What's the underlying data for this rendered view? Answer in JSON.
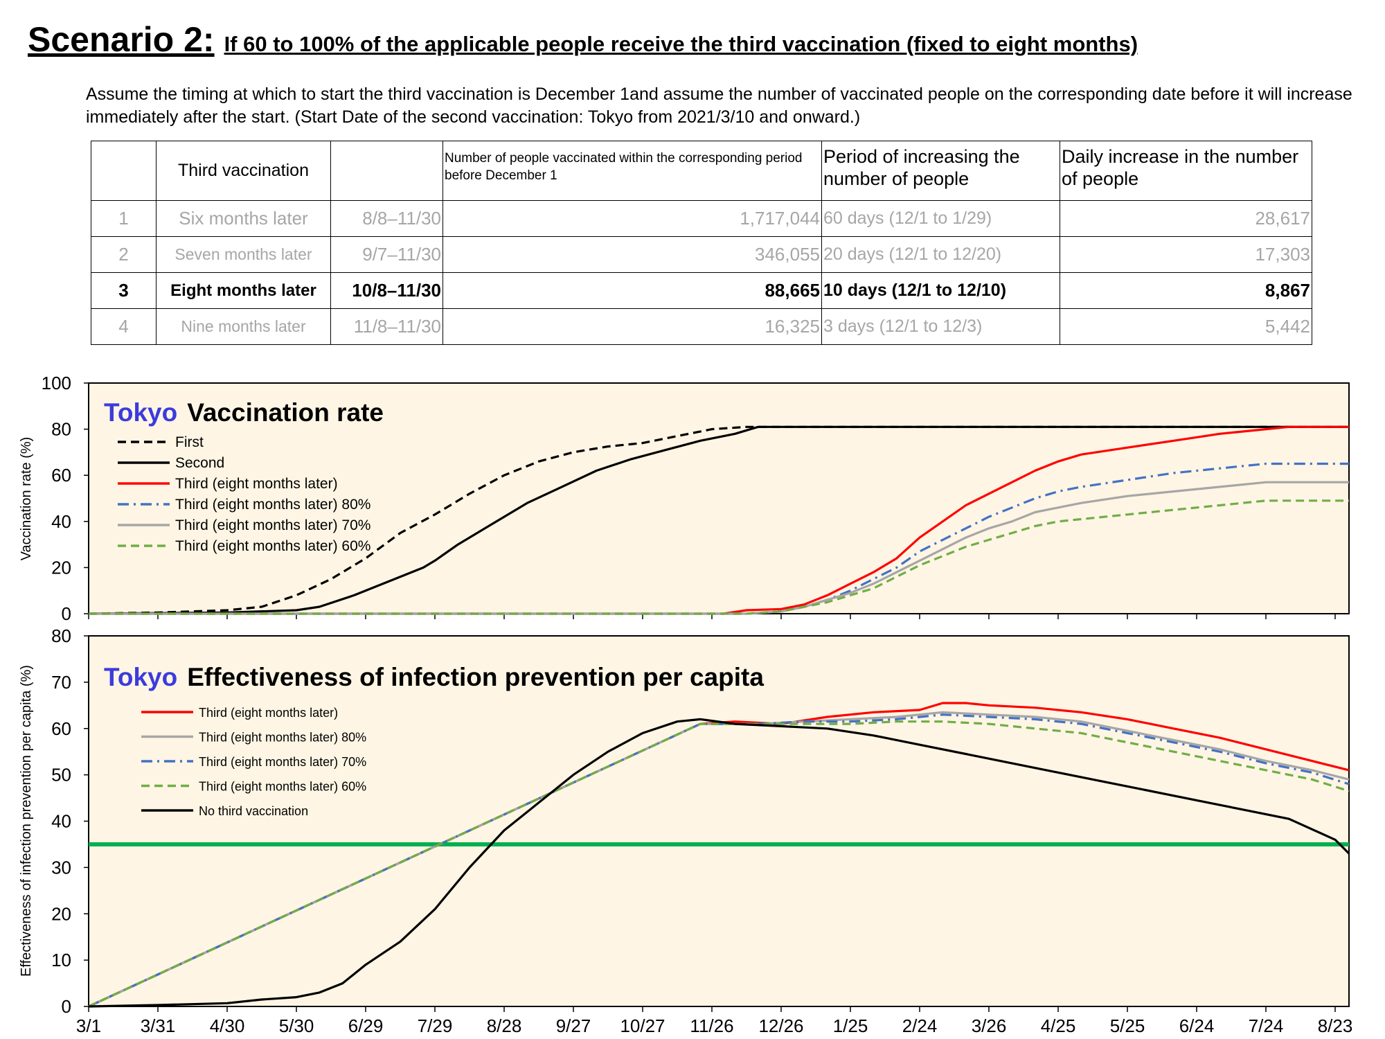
{
  "heading": {
    "scenario": "Scenario 2:",
    "description": "If 60 to 100% of the applicable people receive the third vaccination (fixed to eight months)"
  },
  "assumption": "Assume the timing at which to start the third vaccination is December 1and assume the number of vaccinated people on the corresponding date before it will increase immediately after the start. (Start Date of the second vaccination: Tokyo from 2021/3/10 and onward.)",
  "table": {
    "headers": [
      "",
      "Third vaccination",
      "",
      "Number of people vaccinated within the corresponding period before December 1",
      "Period of increasing the number of people",
      "Daily increase in the number of people"
    ],
    "rows": [
      {
        "no": "1",
        "label": "Six months later",
        "range": "8/8–11/30",
        "count": "1,717,044",
        "period": "60 days (12/1 to 1/29)",
        "daily": "28,617",
        "highlight": false
      },
      {
        "no": "2",
        "label": "Seven months later",
        "range": "9/7–11/30",
        "count": "346,055",
        "period": "20 days (12/1 to 12/20)",
        "daily": "17,303",
        "highlight": false
      },
      {
        "no": "3",
        "label": "Eight months later",
        "range": "10/8–11/30",
        "count": "88,665",
        "period": "10 days (12/1 to 12/10)",
        "daily": "8,867",
        "highlight": true
      },
      {
        "no": "4",
        "label": "Nine months later",
        "range": "11/8–11/30",
        "count": "16,325",
        "period": "3 days (12/1 to 12/3)",
        "daily": "5,442",
        "highlight": false
      }
    ]
  },
  "chart_data": [
    {
      "type": "line",
      "title_prefix": "Tokyo",
      "title": "Vaccination rate",
      "ylabel": "Vaccination rate (%)",
      "ylim": [
        0,
        100
      ],
      "yticks": [
        "0",
        "20",
        "40",
        "60",
        "80",
        "100"
      ],
      "xlabel": "",
      "x_tick_labels": [
        "3/1",
        "3/31",
        "4/30",
        "5/30",
        "6/29",
        "7/29",
        "8/28",
        "9/27",
        "10/27",
        "11/26",
        "12/26",
        "1/25",
        "2/24",
        "3/26",
        "4/25",
        "5/25",
        "6/24",
        "7/24",
        "8/23"
      ],
      "x_unit": "day index (0 = 3/1)",
      "xlim": [
        0,
        546
      ],
      "legend_position": "top-left",
      "series": [
        {
          "name": "First",
          "color": "#000000",
          "dash": "dashed",
          "points": [
            [
              0,
              0
            ],
            [
              30,
              0.5
            ],
            [
              60,
              1.5
            ],
            [
              75,
              3
            ],
            [
              90,
              8
            ],
            [
              105,
              15
            ],
            [
              120,
              24
            ],
            [
              135,
              35
            ],
            [
              150,
              43
            ],
            [
              165,
              52
            ],
            [
              180,
              60
            ],
            [
              195,
              66
            ],
            [
              210,
              70
            ],
            [
              225,
              72.5
            ],
            [
              240,
              74
            ],
            [
              255,
              77
            ],
            [
              270,
              80
            ],
            [
              285,
              81
            ],
            [
              300,
              81
            ],
            [
              546,
              81
            ]
          ]
        },
        {
          "name": "Second",
          "color": "#000000",
          "dash": "solid",
          "points": [
            [
              0,
              0
            ],
            [
              60,
              0.5
            ],
            [
              90,
              1.5
            ],
            [
              100,
              3
            ],
            [
              115,
              8
            ],
            [
              130,
              14
            ],
            [
              145,
              20
            ],
            [
              150,
              23
            ],
            [
              160,
              30
            ],
            [
              175,
              39
            ],
            [
              190,
              48
            ],
            [
              205,
              55
            ],
            [
              220,
              62
            ],
            [
              235,
              67
            ],
            [
              250,
              71
            ],
            [
              265,
              75
            ],
            [
              280,
              78
            ],
            [
              290,
              81
            ],
            [
              546,
              81
            ]
          ]
        },
        {
          "name": "Third (eight months later)",
          "color": "#ff0000",
          "dash": "solid",
          "points": [
            [
              0,
              0
            ],
            [
              275,
              0
            ],
            [
              285,
              1.5
            ],
            [
              300,
              2
            ],
            [
              310,
              4
            ],
            [
              320,
              8
            ],
            [
              330,
              13
            ],
            [
              340,
              18
            ],
            [
              350,
              24
            ],
            [
              360,
              33
            ],
            [
              370,
              40
            ],
            [
              380,
              47
            ],
            [
              390,
              52
            ],
            [
              400,
              57
            ],
            [
              410,
              62
            ],
            [
              420,
              66
            ],
            [
              430,
              69
            ],
            [
              450,
              72
            ],
            [
              470,
              75
            ],
            [
              490,
              78
            ],
            [
              510,
              80
            ],
            [
              520,
              81
            ],
            [
              546,
              81
            ]
          ]
        },
        {
          "name": "Third (eight months later) 80%",
          "color": "#4472c4",
          "dash": "dashdot",
          "points": [
            [
              0,
              0
            ],
            [
              285,
              0
            ],
            [
              300,
              1
            ],
            [
              310,
              3
            ],
            [
              320,
              6
            ],
            [
              330,
              10
            ],
            [
              340,
              15
            ],
            [
              350,
              20
            ],
            [
              360,
              27
            ],
            [
              370,
              32
            ],
            [
              380,
              37
            ],
            [
              390,
              42
            ],
            [
              400,
              46
            ],
            [
              410,
              50
            ],
            [
              420,
              53
            ],
            [
              430,
              55
            ],
            [
              450,
              58
            ],
            [
              470,
              61
            ],
            [
              490,
              63
            ],
            [
              510,
              65
            ],
            [
              546,
              65
            ]
          ]
        },
        {
          "name": "Third (eight months later) 70%",
          "color": "#a6a6a6",
          "dash": "solid",
          "points": [
            [
              0,
              0
            ],
            [
              285,
              0
            ],
            [
              300,
              1
            ],
            [
              310,
              3
            ],
            [
              320,
              6
            ],
            [
              330,
              9
            ],
            [
              340,
              13
            ],
            [
              350,
              18
            ],
            [
              360,
              23
            ],
            [
              370,
              28
            ],
            [
              380,
              33
            ],
            [
              390,
              37
            ],
            [
              400,
              40
            ],
            [
              410,
              44
            ],
            [
              420,
              46
            ],
            [
              430,
              48
            ],
            [
              450,
              51
            ],
            [
              470,
              53
            ],
            [
              490,
              55
            ],
            [
              510,
              57
            ],
            [
              546,
              57
            ]
          ]
        },
        {
          "name": "Third (eight months later) 60%",
          "color": "#70ad47",
          "dash": "dashed",
          "points": [
            [
              0,
              0
            ],
            [
              285,
              0
            ],
            [
              300,
              1
            ],
            [
              310,
              3
            ],
            [
              320,
              5
            ],
            [
              330,
              8
            ],
            [
              340,
              11
            ],
            [
              350,
              16
            ],
            [
              360,
              21
            ],
            [
              370,
              25
            ],
            [
              380,
              29
            ],
            [
              390,
              32
            ],
            [
              400,
              35
            ],
            [
              410,
              38
            ],
            [
              420,
              40
            ],
            [
              430,
              41
            ],
            [
              450,
              43
            ],
            [
              470,
              45
            ],
            [
              490,
              47
            ],
            [
              510,
              49
            ],
            [
              546,
              49
            ]
          ]
        }
      ]
    },
    {
      "type": "line",
      "title_prefix": "Tokyo",
      "title": "Effectiveness of infection prevention per capita",
      "ylabel": "Effectiveness of infection prevention per capita (%)",
      "ylim": [
        0,
        80
      ],
      "yticks": [
        "0",
        "10",
        "20",
        "30",
        "40",
        "50",
        "60",
        "70",
        "80"
      ],
      "xlabel": "",
      "x_tick_labels": [
        "3/1",
        "3/31",
        "4/30",
        "5/30",
        "6/29",
        "7/29",
        "8/28",
        "9/27",
        "10/27",
        "11/26",
        "12/26",
        "1/25",
        "2/24",
        "3/26",
        "4/25",
        "5/25",
        "6/24",
        "7/24",
        "8/23"
      ],
      "x_unit": "day index (0 = 3/1)",
      "xlim": [
        0,
        546
      ],
      "legend_position": "top-left",
      "reference_line": {
        "y": 35,
        "color": "#00b050"
      },
      "series": [
        {
          "name": "Third (eight months later)",
          "color": "#ff0000",
          "dash": "solid",
          "points": [
            [
              0,
              0
            ],
            [
              265,
              61
            ],
            [
              280,
              61.5
            ],
            [
              300,
              61
            ],
            [
              320,
              62.5
            ],
            [
              340,
              63.5
            ],
            [
              360,
              64
            ],
            [
              370,
              65.5
            ],
            [
              380,
              65.5
            ],
            [
              390,
              65
            ],
            [
              410,
              64.5
            ],
            [
              430,
              63.5
            ],
            [
              450,
              62
            ],
            [
              470,
              60
            ],
            [
              490,
              58
            ],
            [
              510,
              55.5
            ],
            [
              530,
              53
            ],
            [
              546,
              51
            ]
          ]
        },
        {
          "name": "Third (eight months later) 80%",
          "color": "#a6a6a6",
          "dash": "solid",
          "points": [
            [
              0,
              0
            ],
            [
              265,
              61
            ],
            [
              290,
              61
            ],
            [
              310,
              61.5
            ],
            [
              330,
              62
            ],
            [
              350,
              62.5
            ],
            [
              370,
              63.5
            ],
            [
              390,
              63
            ],
            [
              410,
              62.5
            ],
            [
              430,
              61.5
            ],
            [
              450,
              59.5
            ],
            [
              470,
              57.5
            ],
            [
              490,
              55.5
            ],
            [
              510,
              53
            ],
            [
              530,
              51
            ],
            [
              546,
              49
            ]
          ]
        },
        {
          "name": "Third (eight months later) 70%",
          "color": "#4472c4",
          "dash": "dashdot",
          "points": [
            [
              0,
              0
            ],
            [
              265,
              61
            ],
            [
              290,
              61
            ],
            [
              310,
              61.5
            ],
            [
              330,
              61.5
            ],
            [
              350,
              62
            ],
            [
              370,
              63
            ],
            [
              390,
              62.5
            ],
            [
              410,
              62
            ],
            [
              430,
              61
            ],
            [
              450,
              59
            ],
            [
              470,
              57
            ],
            [
              490,
              55
            ],
            [
              510,
              52.5
            ],
            [
              530,
              50.5
            ],
            [
              546,
              48
            ]
          ]
        },
        {
          "name": "Third (eight months later) 60%",
          "color": "#70ad47",
          "dash": "dashed",
          "points": [
            [
              0,
              0
            ],
            [
              265,
              61
            ],
            [
              290,
              61
            ],
            [
              310,
              61
            ],
            [
              330,
              61
            ],
            [
              350,
              61.5
            ],
            [
              370,
              61.5
            ],
            [
              390,
              61
            ],
            [
              410,
              60
            ],
            [
              430,
              59
            ],
            [
              450,
              57
            ],
            [
              470,
              55
            ],
            [
              490,
              53
            ],
            [
              510,
              51
            ],
            [
              530,
              49
            ],
            [
              546,
              46.5
            ]
          ]
        },
        {
          "name": "No third vaccination",
          "color": "#000000",
          "dash": "solid",
          "points": [
            [
              0,
              0
            ],
            [
              30,
              0.3
            ],
            [
              60,
              0.7
            ],
            [
              75,
              1.5
            ],
            [
              90,
              2
            ],
            [
              100,
              3
            ],
            [
              110,
              5
            ],
            [
              120,
              9
            ],
            [
              135,
              14
            ],
            [
              150,
              21
            ],
            [
              165,
              30
            ],
            [
              180,
              38
            ],
            [
              195,
              44
            ],
            [
              210,
              50
            ],
            [
              225,
              55
            ],
            [
              240,
              59
            ],
            [
              255,
              61.5
            ],
            [
              265,
              62
            ],
            [
              280,
              61
            ],
            [
              300,
              60.5
            ],
            [
              320,
              60
            ],
            [
              340,
              58.5
            ],
            [
              360,
              56.5
            ],
            [
              380,
              54.5
            ],
            [
              400,
              52.5
            ],
            [
              420,
              50.5
            ],
            [
              440,
              48.5
            ],
            [
              460,
              46.5
            ],
            [
              480,
              44.5
            ],
            [
              500,
              42.5
            ],
            [
              520,
              40.5
            ],
            [
              540,
              36
            ],
            [
              546,
              33
            ]
          ]
        }
      ]
    }
  ]
}
